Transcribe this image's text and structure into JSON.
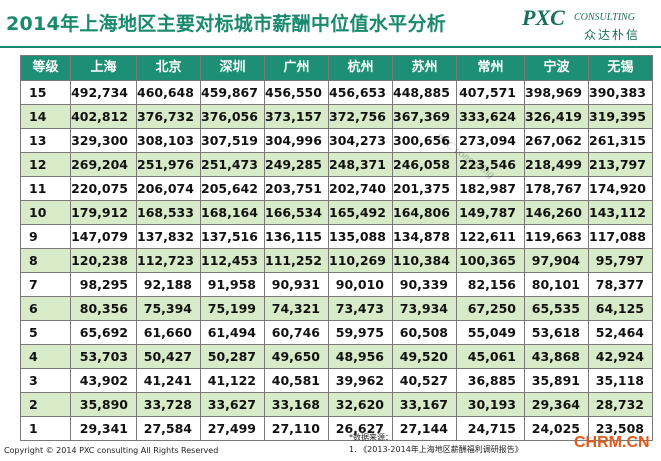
{
  "title": "2014年上海地区主要对标城市薪酬中位值水平分析",
  "logo": {
    "main": "PXC",
    "sub": "CONSULTING",
    "cn": "众达朴信"
  },
  "watermark": "PXC consulting",
  "table": {
    "headers": [
      "等级",
      "上海",
      "北京",
      "深圳",
      "广州",
      "杭州",
      "苏州",
      "常州",
      "宁波",
      "无锡"
    ],
    "rows": [
      [
        "15",
        "492,734",
        "460,648",
        "459,867",
        "456,550",
        "456,653",
        "448,885",
        "407,571",
        "398,969",
        "390,383"
      ],
      [
        "14",
        "402,812",
        "376,732",
        "376,056",
        "373,157",
        "372,756",
        "367,369",
        "333,624",
        "326,419",
        "319,395"
      ],
      [
        "13",
        "329,300",
        "308,103",
        "307,519",
        "304,996",
        "304,273",
        "300,656",
        "273,094",
        "267,062",
        "261,315"
      ],
      [
        "12",
        "269,204",
        "251,976",
        "251,473",
        "249,285",
        "248,371",
        "246,058",
        "223,546",
        "218,499",
        "213,797"
      ],
      [
        "11",
        "220,075",
        "206,074",
        "205,642",
        "203,751",
        "202,740",
        "201,375",
        "182,987",
        "178,767",
        "174,920"
      ],
      [
        "10",
        "179,912",
        "168,533",
        "168,164",
        "166,534",
        "165,492",
        "164,806",
        "149,787",
        "146,260",
        "143,112"
      ],
      [
        "9",
        "147,079",
        "137,832",
        "137,516",
        "136,115",
        "135,088",
        "134,878",
        "122,611",
        "119,663",
        "117,088"
      ],
      [
        "8",
        "120,238",
        "112,723",
        "112,453",
        "111,252",
        "110,269",
        "110,384",
        "100,365",
        "97,904",
        "95,797"
      ],
      [
        "7",
        "98,295",
        "92,188",
        "91,958",
        "90,931",
        "90,010",
        "90,339",
        "82,156",
        "80,101",
        "78,377"
      ],
      [
        "6",
        "80,356",
        "75,394",
        "75,199",
        "74,321",
        "73,473",
        "73,934",
        "67,250",
        "65,535",
        "64,125"
      ],
      [
        "5",
        "65,692",
        "61,660",
        "61,494",
        "60,746",
        "59,975",
        "60,508",
        "55,049",
        "53,618",
        "52,464"
      ],
      [
        "4",
        "53,703",
        "50,427",
        "50,287",
        "49,650",
        "48,956",
        "49,520",
        "45,061",
        "43,868",
        "42,924"
      ],
      [
        "3",
        "43,902",
        "41,241",
        "41,122",
        "40,581",
        "39,962",
        "40,527",
        "36,885",
        "35,891",
        "35,118"
      ],
      [
        "2",
        "35,890",
        "33,728",
        "33,627",
        "33,168",
        "32,620",
        "33,167",
        "30,193",
        "29,364",
        "28,732"
      ],
      [
        "1",
        "29,341",
        "27,584",
        "27,499",
        "27,110",
        "26,627",
        "27,144",
        "24,715",
        "24,025",
        "23,508"
      ]
    ]
  },
  "footer": {
    "copyright": "Copyright © 2014  PXC consulting All Rights Reserved",
    "source_label": "*数据来源：",
    "source_item": "1.    《2013-2014年上海地区薪酬福利调研报告》",
    "site": "CHRM.CN"
  }
}
